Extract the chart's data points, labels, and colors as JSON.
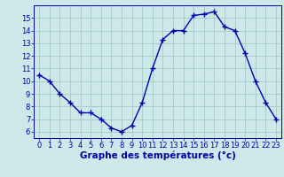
{
  "hours": [
    0,
    1,
    2,
    3,
    4,
    5,
    6,
    7,
    8,
    9,
    10,
    11,
    12,
    13,
    14,
    15,
    16,
    17,
    18,
    19,
    20,
    21,
    22,
    23
  ],
  "temps": [
    10.5,
    10.0,
    9.0,
    8.3,
    7.5,
    7.5,
    7.0,
    6.3,
    6.0,
    6.5,
    8.3,
    11.0,
    13.3,
    14.0,
    14.0,
    15.2,
    15.3,
    15.5,
    14.3,
    14.0,
    12.2,
    10.0,
    8.3,
    7.0
  ],
  "line_color": "#0000aa",
  "marker": "+",
  "bg_color": "#cce8e8",
  "plot_bg_color": "#cce8e8",
  "grid_color": "#aacccc",
  "xlabel": "Graphe des températures (°c)",
  "xlabel_color": "#0000aa",
  "bottom_bar_color": "#0000aa",
  "ylim": [
    5.5,
    16.0
  ],
  "xlim": [
    -0.5,
    23.5
  ],
  "yticks": [
    6,
    7,
    8,
    9,
    10,
    11,
    12,
    13,
    14,
    15
  ],
  "xticks": [
    0,
    1,
    2,
    3,
    4,
    5,
    6,
    7,
    8,
    9,
    10,
    11,
    12,
    13,
    14,
    15,
    16,
    17,
    18,
    19,
    20,
    21,
    22,
    23
  ],
  "tick_color": "#0000aa",
  "tick_fontsize": 6.0,
  "xlabel_fontsize": 7.5,
  "linewidth": 1.0,
  "markersize": 4.0,
  "markeredgewidth": 1.0
}
